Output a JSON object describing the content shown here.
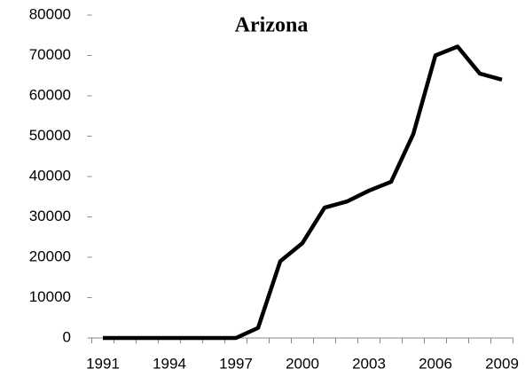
{
  "chart_data": {
    "type": "line",
    "title": "Arizona",
    "categories": [
      "1991",
      null,
      null,
      "1994",
      null,
      null,
      "1997",
      null,
      null,
      "2000",
      null,
      null,
      "2003",
      null,
      null,
      "2006",
      null,
      null,
      "2009"
    ],
    "values": [
      0,
      0,
      0,
      0,
      0,
      0,
      0,
      2500,
      19000,
      23500,
      32300,
      33800,
      36500,
      38700,
      50500,
      70000,
      72200,
      65500,
      64000
    ],
    "color": "#000000",
    "ylim": [
      0,
      80000
    ],
    "yticks": [
      0,
      10000,
      20000,
      30000,
      40000,
      50000,
      60000,
      70000,
      80000
    ],
    "grid": false
  }
}
